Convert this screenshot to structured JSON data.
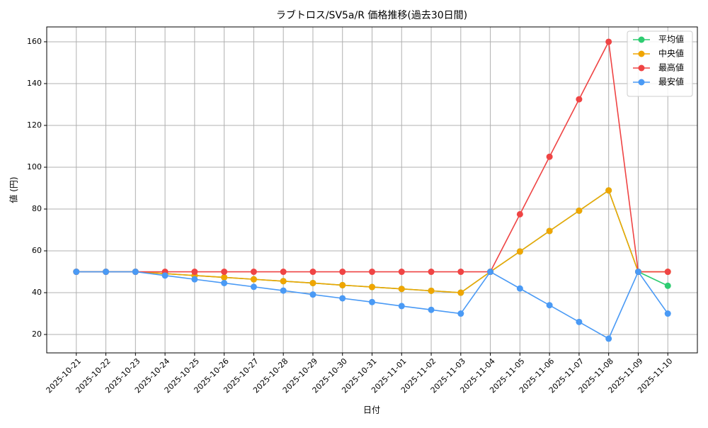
{
  "chart_data": {
    "type": "line",
    "title": "ラブトロス/SV5a/R 価格推移(過去30日間)",
    "xlabel": "日付",
    "ylabel": "値 (円)",
    "x": [
      "2025-10-21",
      "2025-10-22",
      "2025-10-23",
      "2025-10-24",
      "2025-10-25",
      "2025-10-26",
      "2025-10-27",
      "2025-10-28",
      "2025-10-29",
      "2025-10-30",
      "2025-10-31",
      "2025-11-01",
      "2025-11-02",
      "2025-11-03",
      "2025-11-04",
      "2025-11-05",
      "2025-11-06",
      "2025-11-07",
      "2025-11-08",
      "2025-11-09",
      "2025-11-10"
    ],
    "series": [
      {
        "name": "平均値",
        "color": "#2ecc71",
        "values": [
          50,
          50,
          50,
          49.1,
          48.2,
          47.3,
          46.4,
          45.5,
          44.6,
          43.6,
          42.7,
          41.8,
          40.9,
          40,
          50,
          59.7,
          69.5,
          79.2,
          88.9,
          50,
          43.3
        ]
      },
      {
        "name": "中央値",
        "color": "#f0a500",
        "values": [
          50,
          50,
          50,
          49.1,
          48.2,
          47.3,
          46.4,
          45.5,
          44.6,
          43.6,
          42.7,
          41.8,
          40.9,
          40,
          50,
          59.7,
          69.5,
          79.2,
          88.9,
          50,
          50
        ]
      },
      {
        "name": "最高値",
        "color": "#ef4444",
        "values": [
          50,
          50,
          50,
          50,
          50,
          50,
          50,
          50,
          50,
          50,
          50,
          50,
          50,
          50,
          50,
          77.5,
          105,
          132.5,
          160,
          50,
          50
        ]
      },
      {
        "name": "最安値",
        "color": "#4a9af5",
        "values": [
          50,
          50,
          50,
          48.2,
          46.4,
          44.6,
          42.8,
          41,
          39.1,
          37.3,
          35.5,
          33.6,
          31.8,
          30,
          50,
          42,
          34,
          26,
          18,
          50,
          30
        ]
      }
    ],
    "ylim": [
      11.2,
      167.1
    ],
    "yticks": [
      20,
      40,
      60,
      80,
      100,
      120,
      140,
      160
    ],
    "grid": true,
    "legend": "upper right"
  }
}
